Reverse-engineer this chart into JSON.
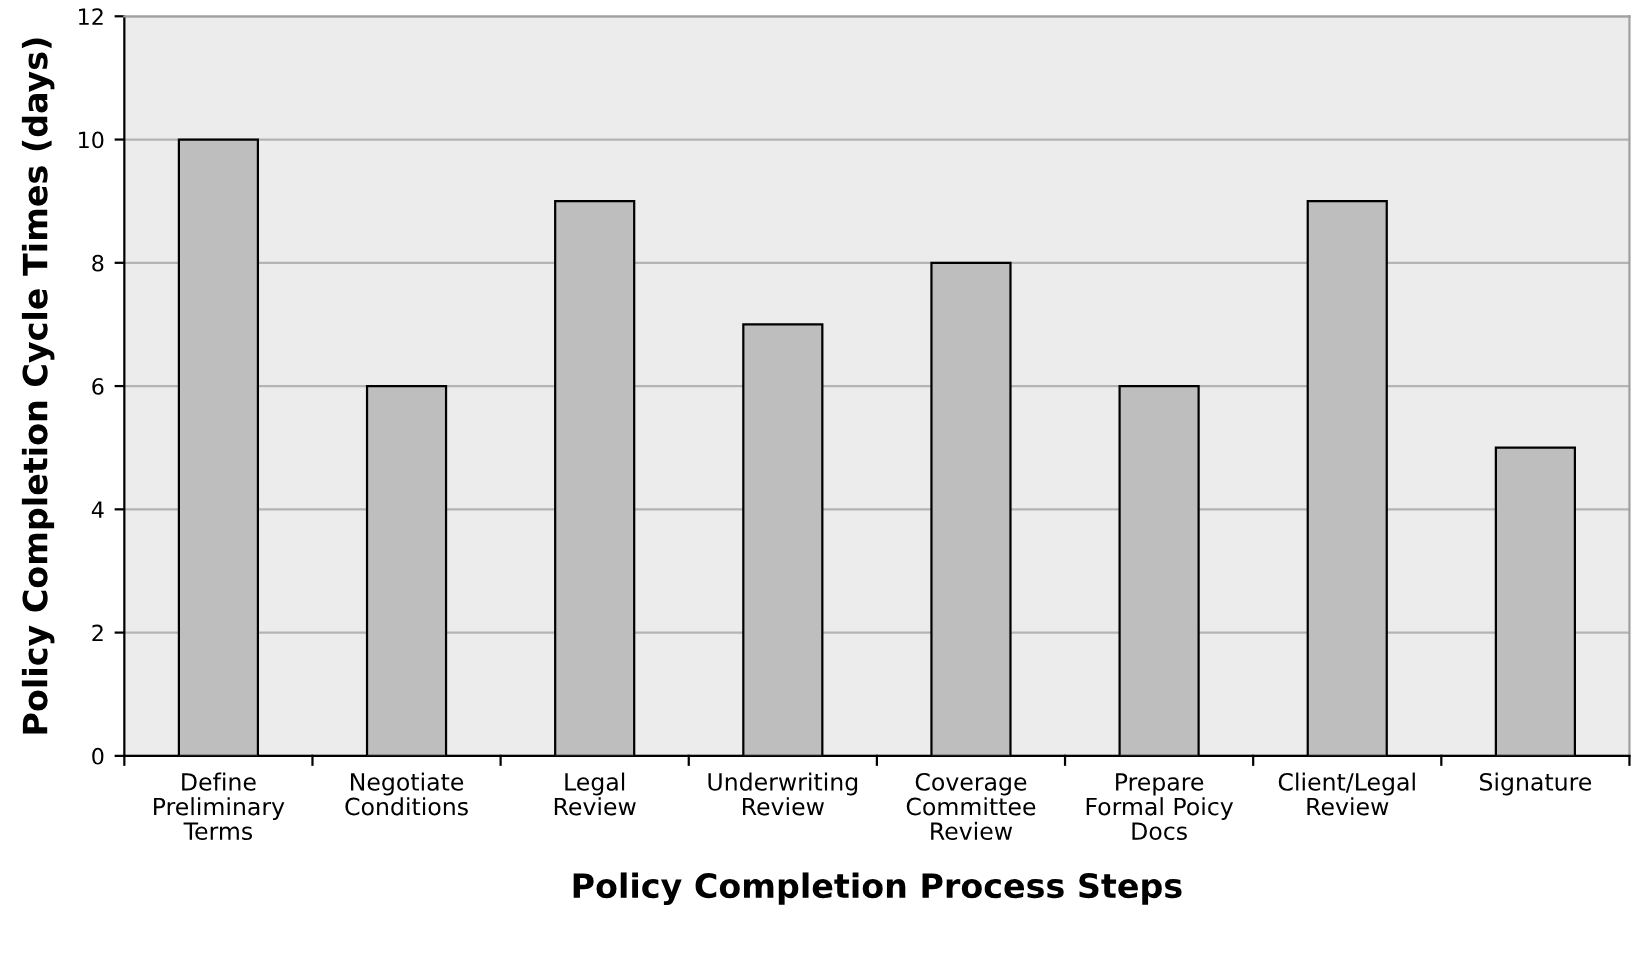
{
  "chart_data": {
    "type": "bar",
    "xlabel": "Policy Completion Process Steps",
    "ylabel": "Policy Completion Cycle Times (days)",
    "categories": [
      "Define\nPreliminary\nTerms",
      "Negotiate\nConditions",
      "Legal\nReview",
      "Underwriting\nReview",
      "Coverage\nCommittee\nReview",
      "Prepare\nFormal Poicy\nDocs",
      "Client/Legal\nReview",
      "Signature"
    ],
    "values": [
      10,
      6,
      9,
      7,
      8,
      6,
      9,
      5
    ],
    "color": "#bebebe",
    "ylim": [
      0,
      12
    ],
    "yticks": [
      0,
      2,
      4,
      6,
      8,
      10,
      12
    ],
    "grid": "y",
    "legend": false
  }
}
